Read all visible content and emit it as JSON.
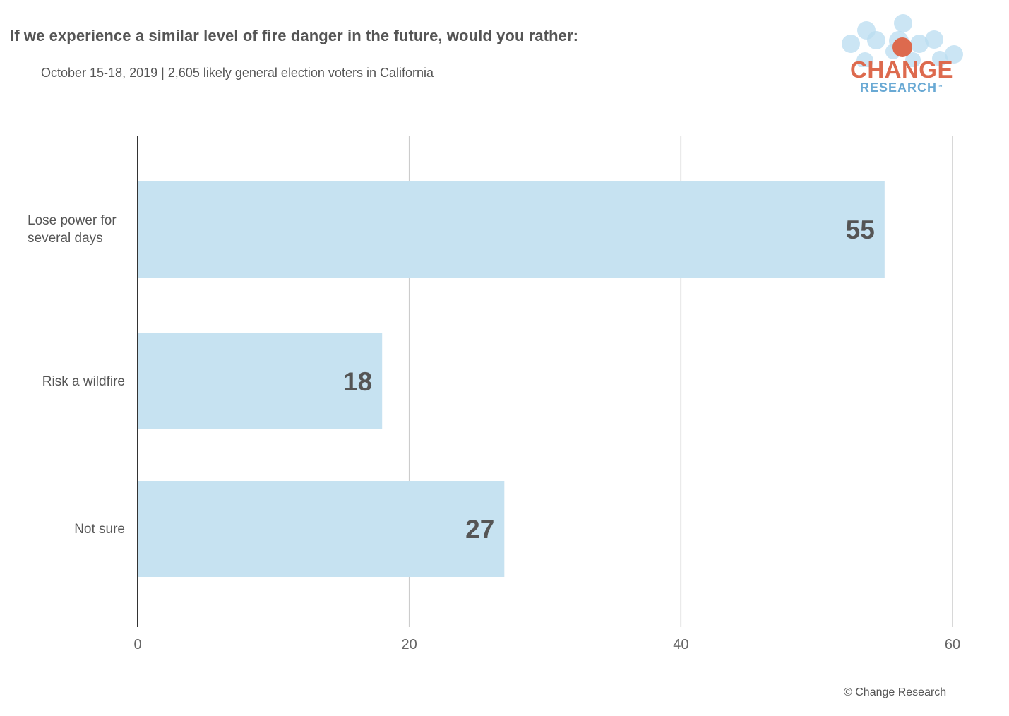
{
  "chart_data": {
    "type": "bar",
    "orientation": "horizontal",
    "title": "If we experience a similar level of fire danger in the future, would you rather:",
    "subtitle": "October 15-18, 2019  | 2,605 likely general election voters in California",
    "categories": [
      "Lose power for several days",
      "Risk a wildfire",
      "Not sure"
    ],
    "values": [
      55,
      18,
      27
    ],
    "data_labels": [
      "55",
      "18",
      "27"
    ],
    "xlim": [
      0,
      60
    ],
    "xticks": [
      0,
      20,
      40,
      60
    ],
    "xtick_labels": [
      "0",
      "20",
      "40",
      "60"
    ],
    "grid": true,
    "legend": "none",
    "bar_color": "#c6e2f1",
    "label_color": "#555555"
  },
  "logo": {
    "line1": "CHANGE",
    "line2": "RESEARCH",
    "tm": "™",
    "accent_color": "#dd6a4e",
    "bubble_color": "#b9dcf0"
  },
  "footer": {
    "copyright": "© Change Research"
  }
}
